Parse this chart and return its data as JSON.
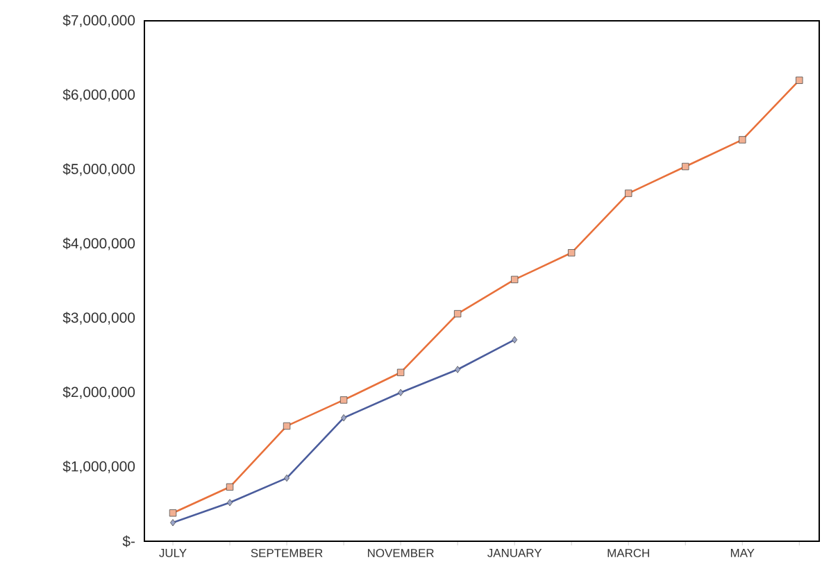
{
  "chart_data": {
    "type": "line",
    "categories": [
      "JULY",
      null,
      "SEPTEMBER",
      null,
      "NOVEMBER",
      null,
      "JANUARY",
      null,
      "MARCH",
      null,
      "MAY",
      null
    ],
    "series": [
      {
        "color": "#e8703a",
        "marker": "square",
        "values": [
          380000,
          730000,
          1550000,
          1900000,
          2270000,
          3060000,
          3520000,
          3880000,
          4680000,
          5040000,
          5400000,
          6200000
        ]
      },
      {
        "color": "#4a5c9c",
        "marker": "diamond",
        "values": [
          250000,
          520000,
          850000,
          1660000,
          2000000,
          2310000,
          2710000,
          null,
          null,
          null,
          null,
          null
        ]
      }
    ],
    "ylim": [
      0,
      7000000
    ],
    "yticks": [
      {
        "value": 0,
        "label": "$-"
      },
      {
        "value": 1000000,
        "label": "$1,000,000"
      },
      {
        "value": 2000000,
        "label": "$2,000,000"
      },
      {
        "value": 3000000,
        "label": "$3,000,000"
      },
      {
        "value": 4000000,
        "label": "$4,000,000"
      },
      {
        "value": 5000000,
        "label": "$5,000,000"
      },
      {
        "value": 6000000,
        "label": "$6,000,000"
      },
      {
        "value": 7000000,
        "label": "$7,000,000"
      }
    ],
    "grid": false,
    "line_style": "solid"
  }
}
